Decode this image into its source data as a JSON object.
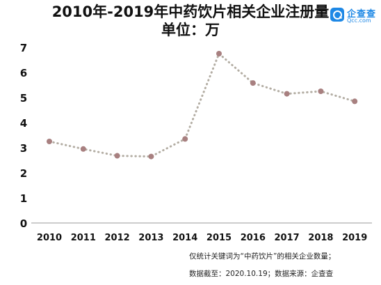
{
  "title_line1": "2010年-2019年中药饮片相关企业注册量",
  "title_line2": "单位：万",
  "logo": {
    "name": "企查查",
    "url": "Qcc.com"
  },
  "notes": [
    "仅统计关键词为“中药饮片”的相关企业数量；",
    "数据截至：2020.10.19；数据来源：企查查"
  ],
  "chart_data": {
    "type": "line",
    "title": "2010年-2019年中药饮片相关企业注册量",
    "subtitle": "单位：万",
    "x": [
      "2010",
      "2011",
      "2012",
      "2013",
      "2014",
      "2015",
      "2016",
      "2017",
      "2018",
      "2019"
    ],
    "series": [
      {
        "values": [
          3.25,
          2.95,
          2.68,
          2.65,
          3.35,
          6.75,
          5.58,
          5.15,
          5.25,
          4.85
        ]
      }
    ],
    "yticks": [
      "0",
      "1",
      "2",
      "3",
      "4",
      "5",
      "6",
      "7"
    ],
    "ylim": [
      0,
      7
    ],
    "grid": false,
    "legend": "none",
    "colors": {
      "line": "#b3ada3",
      "marker": "#a88080",
      "axis": "#999999"
    }
  }
}
